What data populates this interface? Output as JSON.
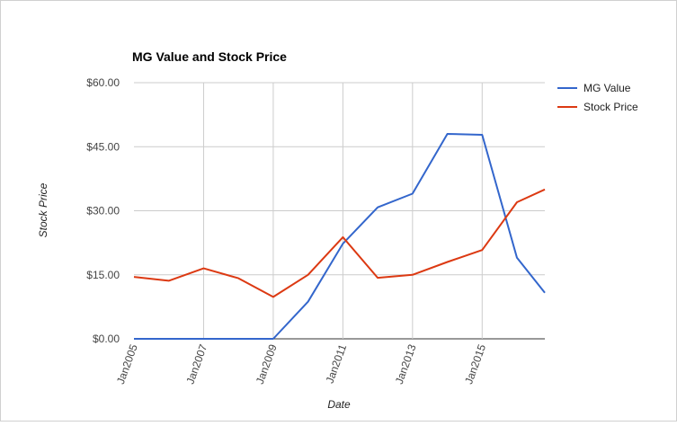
{
  "chart_data": {
    "type": "line",
    "title": "MG Value and Stock Price",
    "xlabel": "Date",
    "ylabel": "Stock Price",
    "x_ticks": [
      "Jan2005",
      "Jan2007",
      "Jan2009",
      "Jan2011",
      "Jan2013",
      "Jan2015"
    ],
    "y_ticks": [
      "$0.00",
      "$15.00",
      "$30.00",
      "$45.00",
      "$60.00"
    ],
    "ylim": [
      0,
      60
    ],
    "grid": true,
    "legend": "right",
    "series": [
      {
        "name": "MG Value",
        "color": "#3366cc",
        "x": [
          2005.0,
          2006.0,
          2007.0,
          2008.0,
          2009.0,
          2010.0,
          2011.0,
          2012.0,
          2013.0,
          2014.0,
          2015.0,
          2016.0,
          2016.8
        ],
        "values": [
          0.0,
          0.0,
          0.0,
          0.0,
          0.0,
          8.7,
          22.3,
          30.8,
          34.0,
          48.0,
          47.8,
          19.0,
          10.8
        ]
      },
      {
        "name": "Stock Price",
        "color": "#dc3912",
        "x": [
          2005.0,
          2006.0,
          2007.0,
          2008.0,
          2009.0,
          2010.0,
          2011.0,
          2012.0,
          2013.0,
          2014.0,
          2015.0,
          2016.0,
          2016.8
        ],
        "values": [
          14.5,
          13.6,
          16.5,
          14.2,
          9.8,
          15.0,
          23.8,
          14.3,
          15.0,
          18.0,
          20.8,
          32.0,
          35.0
        ]
      }
    ]
  }
}
